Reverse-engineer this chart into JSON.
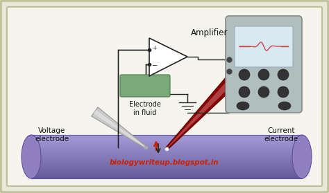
{
  "bg_outer": "#e8e8d8",
  "bg_inner": "#f5f5ee",
  "border_color": "#c0c099",
  "watermark": "biologywriteup.blogspot.in",
  "watermark_color": "#cc2200",
  "labels": {
    "amplifier": "Amplifier",
    "electrode_fluid": "Electrode\nin fluid",
    "voltage_electrode": "Voltage\nelectrode",
    "current_electrode": "Current\nelectrode"
  },
  "label_color": "#111111",
  "tube_color_light": "#c0b8e0",
  "tube_color_mid": "#9888c8",
  "tube_color_dark": "#7060a8",
  "wire_color": "#222222",
  "current_electrode_color": "#8b0000",
  "current_electrode_light": "#cc6666",
  "red_arrow_color": "#cc2200",
  "fluid_electrode_color": "#7aaa7a",
  "fluid_electrode_dark": "#4a7a4a",
  "device_body_color": "#b8c8c8",
  "device_screen_bg": "#c8dce8",
  "device_screen_border": "#889898",
  "device_wave_color": "#cc4444",
  "ground_color": "#222222",
  "amp_triangle_fill": "#ffffff",
  "amp_triangle_edge": "#222222",
  "voltage_pipette_color": "#d0d0d0",
  "voltage_pipette_edge": "#888888"
}
